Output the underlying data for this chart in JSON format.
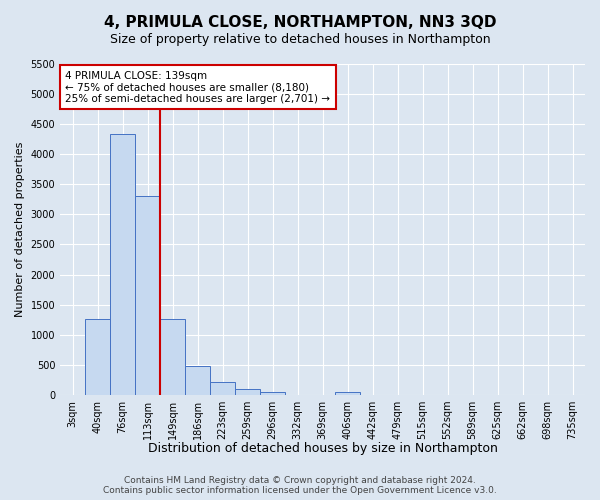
{
  "title": "4, PRIMULA CLOSE, NORTHAMPTON, NN3 3QD",
  "subtitle": "Size of property relative to detached houses in Northampton",
  "xlabel": "Distribution of detached houses by size in Northampton",
  "ylabel": "Number of detached properties",
  "footer_line1": "Contains HM Land Registry data © Crown copyright and database right 2024.",
  "footer_line2": "Contains public sector information licensed under the Open Government Licence v3.0.",
  "bar_labels": [
    "3sqm",
    "40sqm",
    "76sqm",
    "113sqm",
    "149sqm",
    "186sqm",
    "223sqm",
    "259sqm",
    "296sqm",
    "332sqm",
    "369sqm",
    "406sqm",
    "442sqm",
    "479sqm",
    "515sqm",
    "552sqm",
    "589sqm",
    "625sqm",
    "662sqm",
    "698sqm",
    "735sqm"
  ],
  "bar_values": [
    0,
    1260,
    4340,
    3300,
    1260,
    480,
    215,
    90,
    55,
    0,
    0,
    55,
    0,
    0,
    0,
    0,
    0,
    0,
    0,
    0,
    0
  ],
  "bar_color": "#c6d9f0",
  "bar_edge_color": "#4472c4",
  "background_color": "#dce6f1",
  "plot_bg_color": "#dce6f1",
  "grid_color": "#ffffff",
  "ylim": [
    0,
    5500
  ],
  "yticks": [
    0,
    500,
    1000,
    1500,
    2000,
    2500,
    3000,
    3500,
    4000,
    4500,
    5000,
    5500
  ],
  "annotation_text": "4 PRIMULA CLOSE: 139sqm\n← 75% of detached houses are smaller (8,180)\n25% of semi-detached houses are larger (2,701) →",
  "red_line_bar_index": 3,
  "annotation_box_color": "#ffffff",
  "annotation_border_color": "#cc0000",
  "red_line_color": "#cc0000",
  "title_fontsize": 11,
  "subtitle_fontsize": 9,
  "xlabel_fontsize": 9,
  "ylabel_fontsize": 8,
  "tick_fontsize": 7,
  "annotation_fontsize": 7.5,
  "footer_fontsize": 6.5
}
